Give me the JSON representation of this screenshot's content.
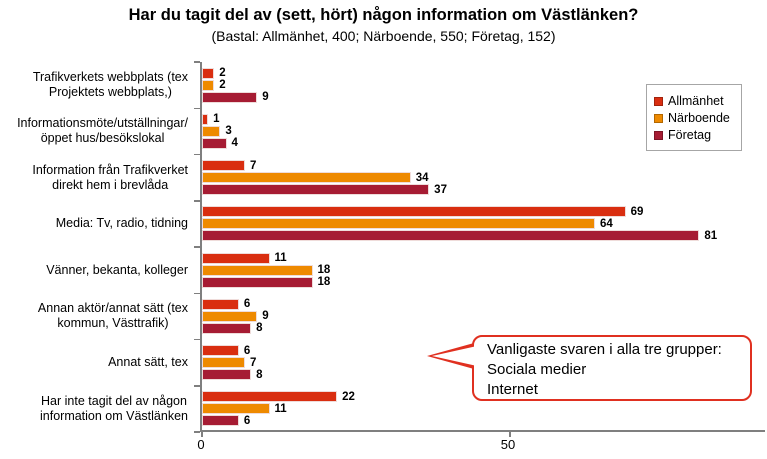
{
  "chart_data": {
    "type": "bar",
    "orientation": "horizontal",
    "title": "Har du tagit del av (sett, hört) någon information om Västlänken?",
    "subtitle": "(Bastal: Allmänhet, 400; Närboende, 550; Företag, 152)",
    "categories": [
      {
        "lines": [
          "Trafikverkets webbplats (tex",
          "Projektets webbplats,)"
        ]
      },
      {
        "lines": [
          "Informationsmöte/utställningar/",
          "öppet hus/besökslokal"
        ]
      },
      {
        "lines": [
          "Information från Trafikverket",
          "direkt hem i brevlåda"
        ]
      },
      {
        "lines": [
          "Media: Tv, radio, tidning"
        ]
      },
      {
        "lines": [
          "Vänner, bekanta, kolleger"
        ]
      },
      {
        "lines": [
          "Annan aktör/annat sätt (tex",
          "kommun, Västtrafik)"
        ]
      },
      {
        "lines": [
          "Annat sätt, tex"
        ]
      },
      {
        "lines": [
          "Har inte tagit del av någon",
          "information om Västlänken"
        ]
      }
    ],
    "series": [
      {
        "name": "Allmänhet",
        "color": "#D92E10",
        "values": [
          2,
          1,
          7,
          69,
          11,
          6,
          6,
          22
        ]
      },
      {
        "name": "Närboende",
        "color": "#EE8A00",
        "values": [
          2,
          3,
          34,
          64,
          18,
          9,
          7,
          11
        ]
      },
      {
        "name": "Företag",
        "color": "#A61C33",
        "values": [
          9,
          4,
          37,
          81,
          18,
          8,
          8,
          6
        ]
      }
    ],
    "x_ticks": [
      0,
      50
    ],
    "xlim": [
      0,
      92
    ],
    "grid": false,
    "legend_position": "upper-right",
    "annotation": {
      "lines": [
        "Vanligaste svaren i alla tre grupper:",
        "Sociala medier",
        "Internet"
      ]
    }
  },
  "colors": {
    "axis": "#7F7F7F",
    "legend_border": "#A6A6A6",
    "callout_border": "#E03020"
  }
}
